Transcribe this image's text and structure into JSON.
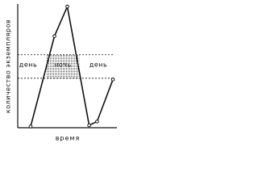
{
  "chart_data": {
    "type": "line",
    "ylabel": "количество экземпляров",
    "xlabel": "время",
    "x": [
      13,
      37,
      50,
      72,
      80,
      96
    ],
    "values": [
      1,
      74,
      98,
      2,
      5,
      39
    ],
    "color": "#111111",
    "xlim": [
      0,
      100
    ],
    "ylim": [
      0,
      100
    ],
    "reference_lines": [
      59,
      40
    ],
    "shaded_xrange": [
      29,
      62
    ],
    "annotations": [
      "день",
      "ночь",
      "день"
    ]
  }
}
